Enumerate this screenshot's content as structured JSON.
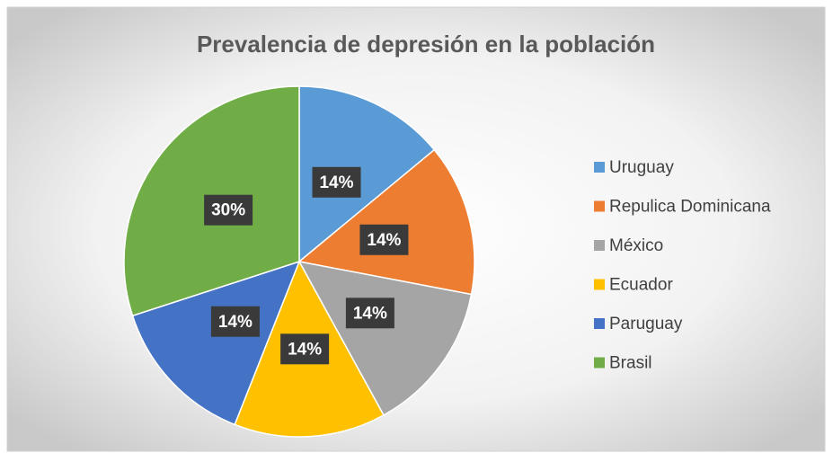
{
  "chart_data": {
    "type": "pie",
    "title": "Prevalencia de depresión en la población",
    "categories": [
      "Uruguay",
      "Repulica Dominicana",
      "México",
      "Ecuador",
      "Paruguay",
      "Brasil"
    ],
    "values": [
      14,
      14,
      14,
      14,
      14,
      30
    ],
    "value_labels": [
      "14%",
      "14%",
      "14%",
      "14%",
      "14%",
      "30%"
    ],
    "colors": [
      "#5b9bd5",
      "#ed7d31",
      "#a5a5a5",
      "#ffc000",
      "#4472c4",
      "#70ad47"
    ],
    "legend": "right"
  }
}
